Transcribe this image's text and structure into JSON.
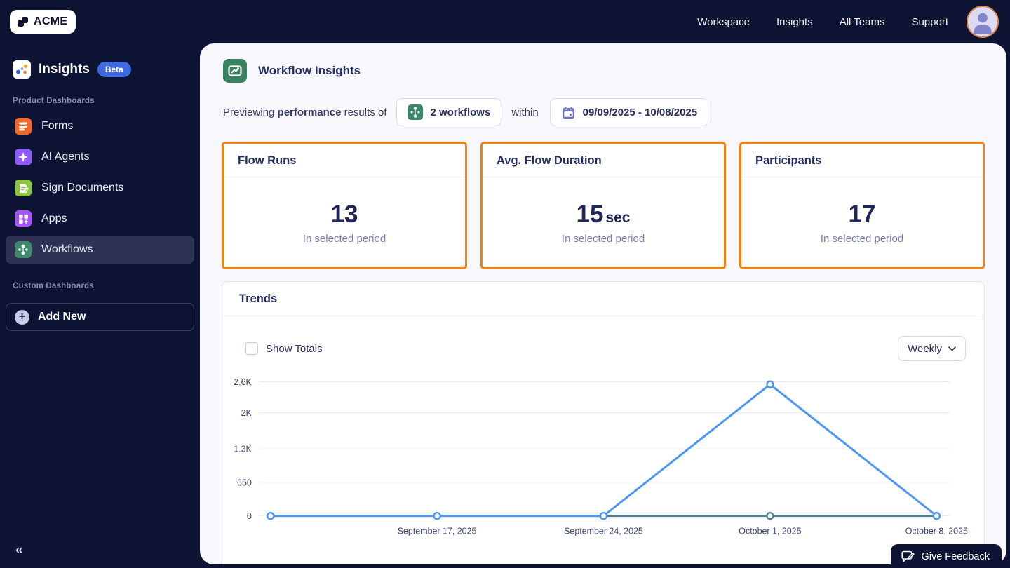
{
  "topbar": {
    "logo": "ACME",
    "links": [
      {
        "label": "Workspace"
      },
      {
        "label": "Insights"
      },
      {
        "label": "All Teams"
      },
      {
        "label": "Support"
      }
    ]
  },
  "sidebar": {
    "app_title": "Insights",
    "beta_badge": "Beta",
    "product_section_label": "Product Dashboards",
    "items": [
      {
        "label": "Forms",
        "icon": "forms-icon",
        "color": "#f2672a"
      },
      {
        "label": "AI Agents",
        "icon": "ai-agents-icon",
        "color": "#8b5cf6"
      },
      {
        "label": "Sign Documents",
        "icon": "sign-documents-icon",
        "color": "#8cc63e"
      },
      {
        "label": "Apps",
        "icon": "apps-icon",
        "color": "#a855f7"
      },
      {
        "label": "Workflows",
        "icon": "workflows-icon",
        "color": "#3e8a6c",
        "selected": true
      }
    ],
    "custom_section_label": "Custom Dashboards",
    "add_new_label": "Add New",
    "collapse_icon": "«"
  },
  "main": {
    "page_title": "Workflow Insights",
    "preview_bar": {
      "text_prefix": "Previewing",
      "text_bold": "performance",
      "text_suffix": "results of",
      "workflows_selector": "2 workflows",
      "within_label": "within",
      "date_range": "09/09/2025 - 10/08/2025"
    },
    "metric_cards": [
      {
        "title": "Flow Runs",
        "value": "13",
        "unit": "",
        "caption": "In selected period"
      },
      {
        "title": "Avg. Flow Duration",
        "value": "15",
        "unit": "sec",
        "caption": "In selected period"
      },
      {
        "title": "Participants",
        "value": "17",
        "unit": "",
        "caption": "In selected period"
      }
    ],
    "trends": {
      "title": "Trends",
      "show_totals_label": "Show Totals",
      "show_totals_checked": false,
      "interval_selector": "Weekly"
    }
  },
  "feedback": {
    "label": "Give Feedback"
  },
  "chart_data": {
    "type": "line",
    "num_points": 5,
    "x_tick_labels": [
      "September 17, 2025",
      "September 24, 2025",
      "October 1, 2025",
      "October 8, 2025"
    ],
    "labeled_point_indexes": [
      1,
      2,
      3,
      4
    ],
    "series": [
      {
        "name": "flat-zero-series",
        "color": "#4f7f95",
        "values": [
          0,
          0,
          0,
          0,
          0
        ]
      },
      {
        "name": "peak-series",
        "color": "#4d96f2",
        "values": [
          0,
          0,
          0,
          2550,
          0
        ]
      }
    ],
    "y_tick_labels": [
      "0",
      "650",
      "1.3K",
      "2K",
      "2.6K"
    ],
    "y_tick_values": [
      0,
      650,
      1300,
      2000,
      2600
    ],
    "ylim": [
      0,
      2600
    ],
    "grid": true,
    "legend": false
  },
  "colors": {
    "navy_bg": "#0d1333",
    "accent_orange": "#f5820d",
    "content_bg": "#f7f7fc",
    "card_border": "#e4e4ef",
    "title_text": "#252e62",
    "muted_text": "#7a81a8",
    "beta_blue": "#3f6ae1",
    "line_blue": "#4d96f2",
    "line_teal": "#4f7f95",
    "gridline": "#eaeaf2",
    "axis_text": "#3d4570"
  }
}
